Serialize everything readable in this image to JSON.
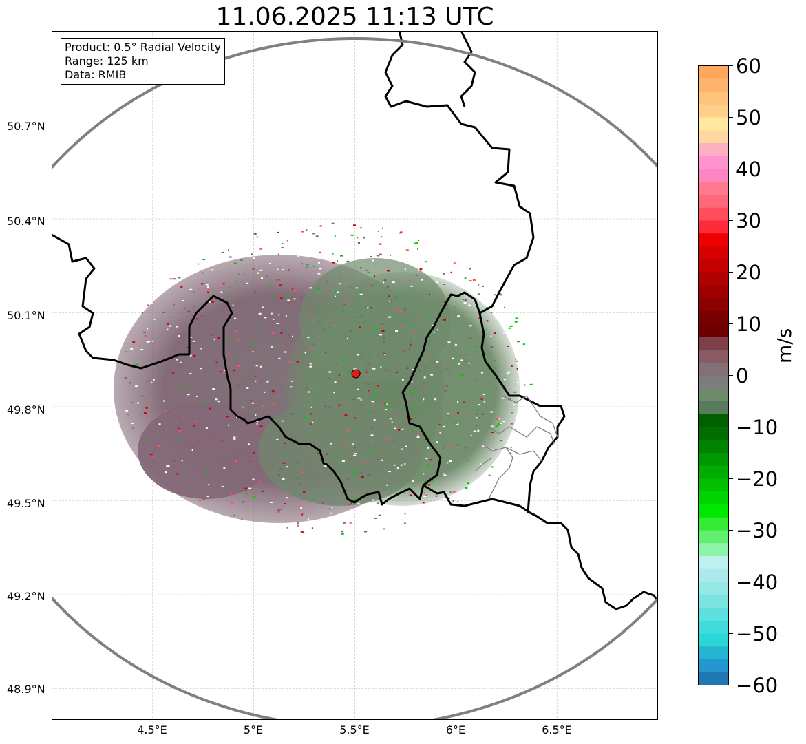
{
  "title": "11.06.2025 11:13 UTC",
  "info_box": {
    "product": "Product: 0.5° Radial Velocity",
    "range": "Range: 125 km",
    "data": "Data: RMIB"
  },
  "map": {
    "lon_range": [
      4.0,
      7.0
    ],
    "lat_range": [
      48.8,
      51.0
    ],
    "lat_ticks": [
      "50.7°N",
      "50.4°N",
      "50.1°N",
      "49.8°N",
      "49.5°N",
      "49.2°N",
      "48.9°N"
    ],
    "lon_ticks": [
      "4.5°E",
      "5°E",
      "5.5°E",
      "6°E",
      "6.5°E"
    ],
    "radar_site": {
      "lon": 5.5,
      "lat": 49.91
    },
    "range_ring_km": 125,
    "gridlines": true
  },
  "colorbar": {
    "label": "m/s",
    "ticks": [
      "60",
      "50",
      "40",
      "30",
      "20",
      "10",
      "0",
      "−10",
      "−20",
      "−30",
      "−40",
      "−50",
      "−60"
    ],
    "range": [
      -60,
      60
    ],
    "colors": [
      "#1f78b4",
      "#2596cf",
      "#25b5d0",
      "#2ad6d8",
      "#40dcdc",
      "#5ee0df",
      "#7ae4e2",
      "#94e8e6",
      "#ade9ec",
      "#bdf0ee",
      "#8ef5a8",
      "#63f070",
      "#33ec33",
      "#00e800",
      "#00d400",
      "#00c000",
      "#00ac00",
      "#009800",
      "#008400",
      "#006f00",
      "#006000",
      "#5a7a5c",
      "#6d8a6b",
      "#7d7d7d",
      "#836f78",
      "#8a5a63",
      "#7e4048",
      "#6e0000",
      "#7a0000",
      "#8c0000",
      "#9e0000",
      "#b00000",
      "#c40000",
      "#d80000",
      "#ec0000",
      "#ff2b3a",
      "#ff4d5e",
      "#ff6878",
      "#ff7a8e",
      "#ff85c2",
      "#ff94d0",
      "#ffb0c0",
      "#ffd7a0",
      "#ffe8a0",
      "#ffd08a",
      "#ffc47c",
      "#ffb46c",
      "#ffa85c"
    ]
  }
}
